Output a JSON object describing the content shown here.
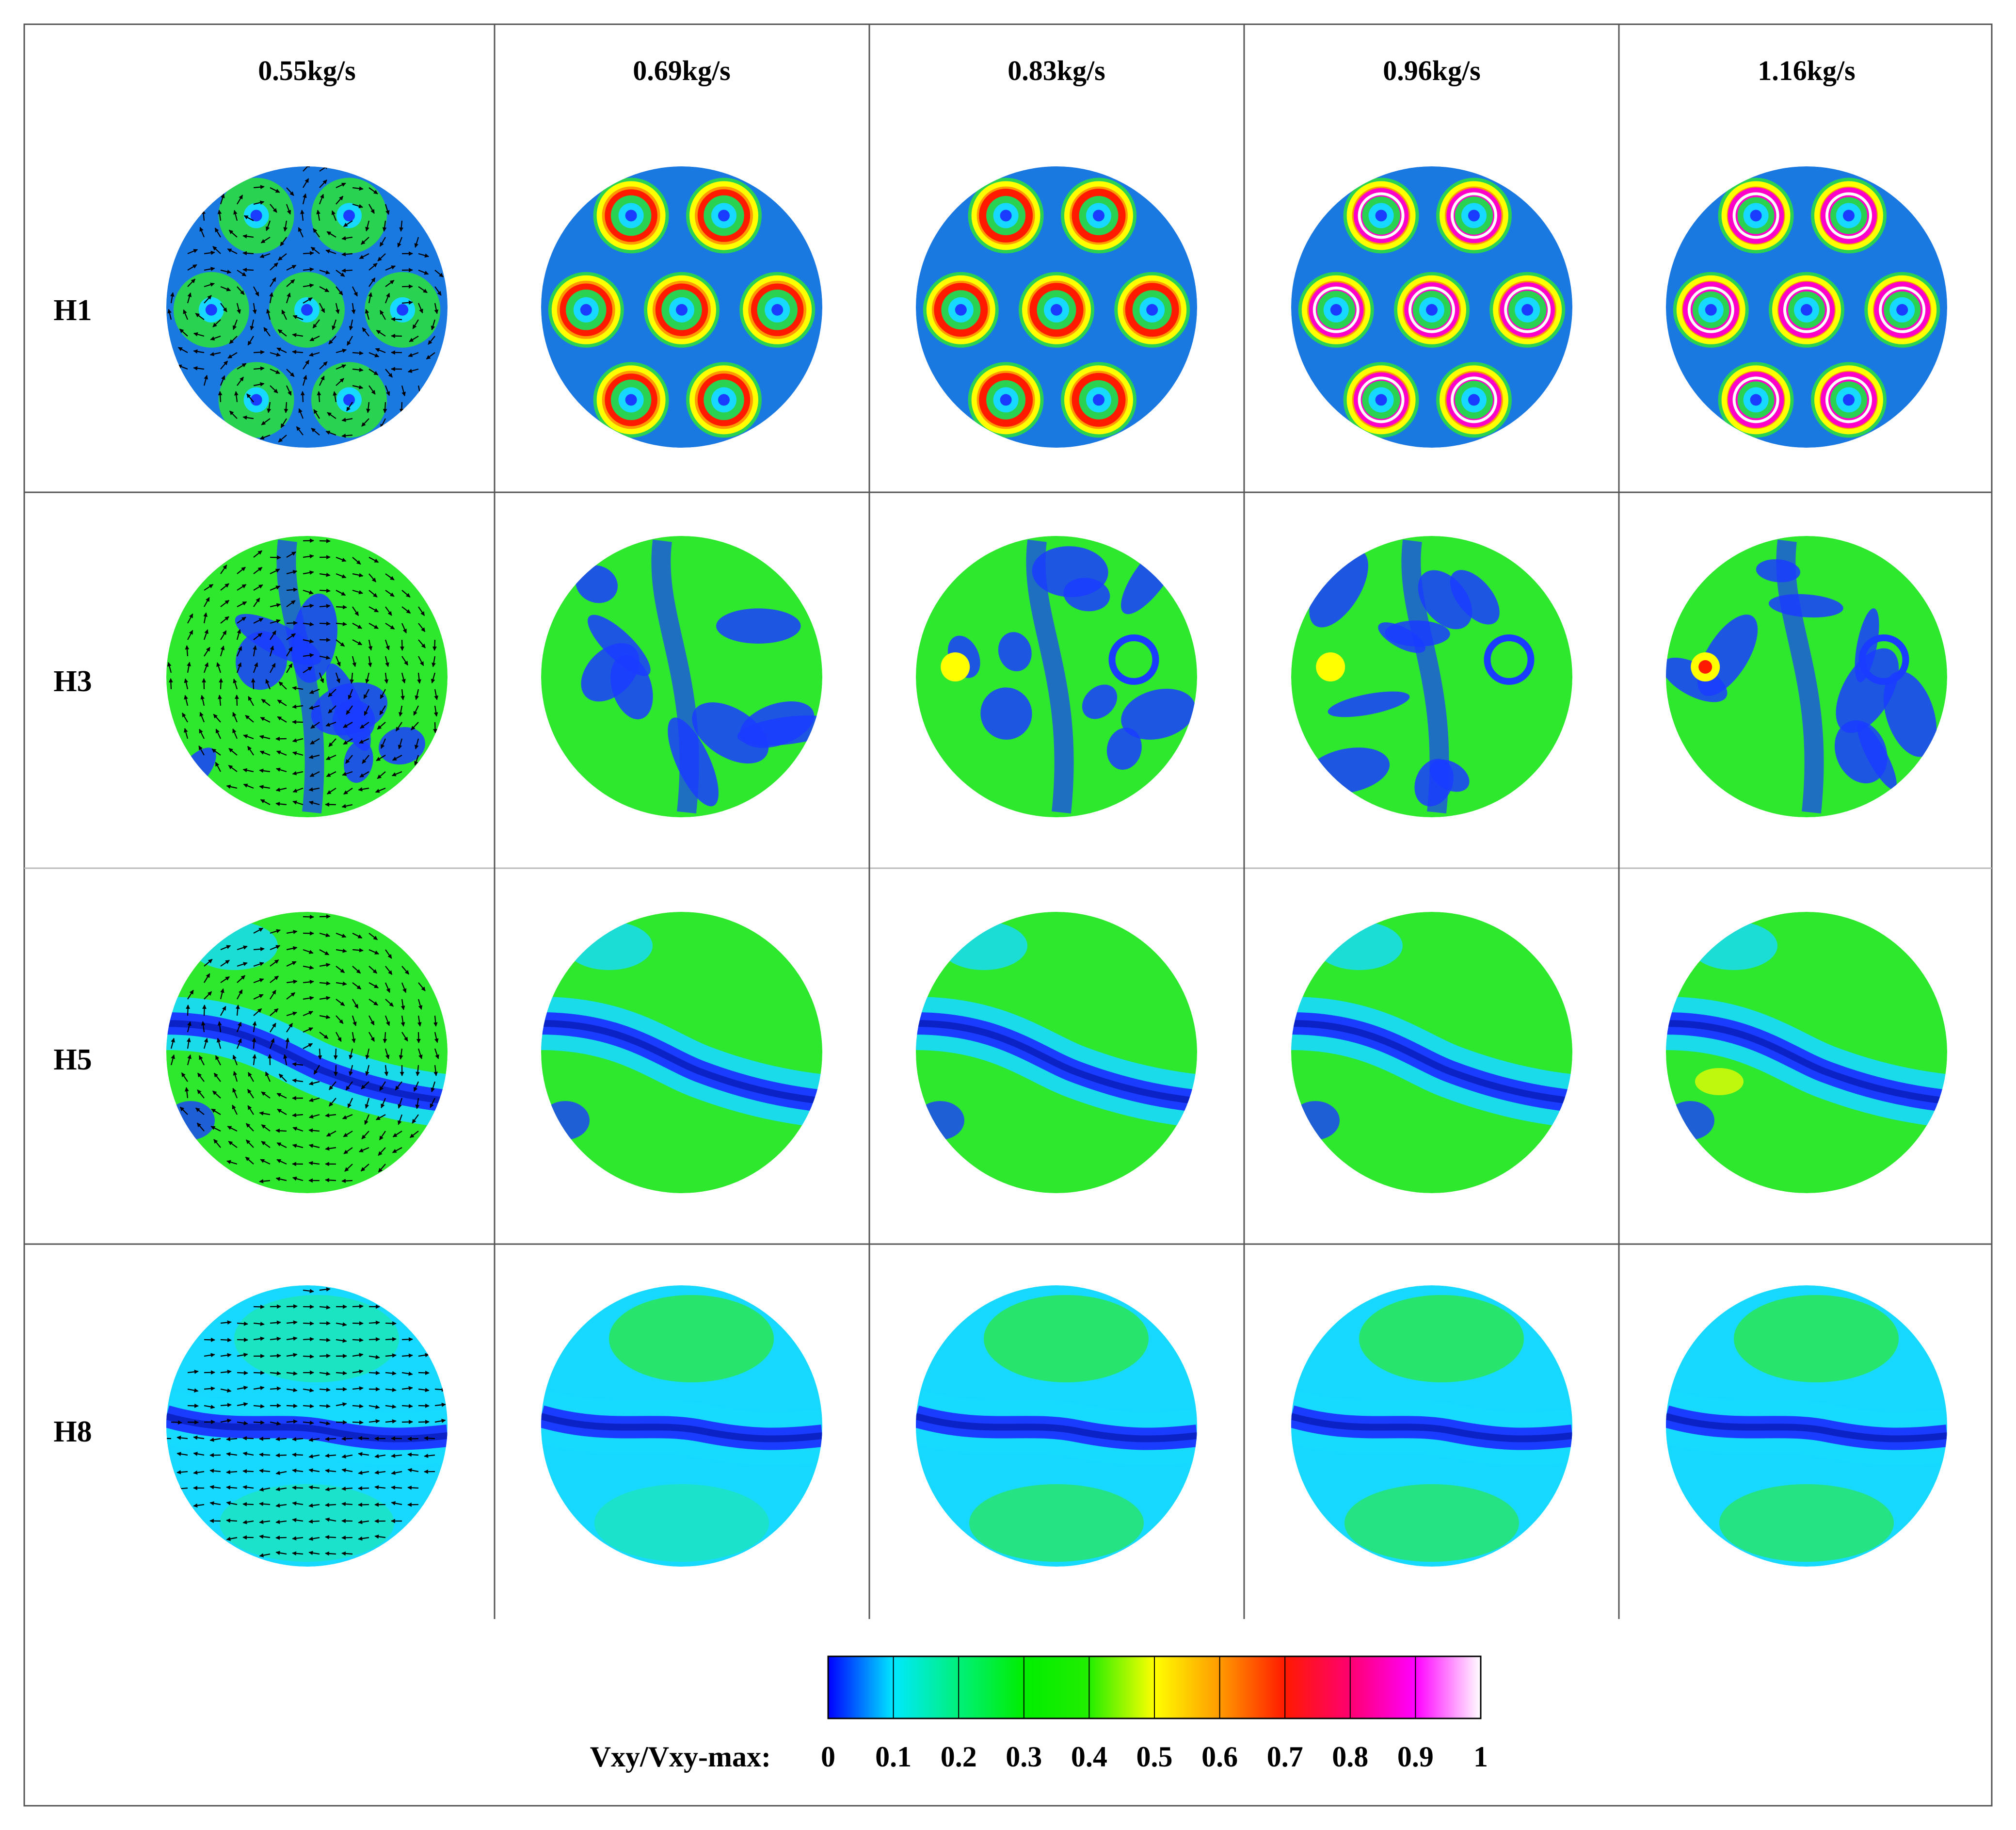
{
  "figure": {
    "columns": [
      "0.55kg/s",
      "0.69kg/s",
      "0.83kg/s",
      "0.96kg/s",
      "1.16kg/s"
    ],
    "rows": [
      "H1",
      "H3",
      "H5",
      "H8"
    ],
    "first_column_style": "velocity vectors over contour",
    "other_columns_style": "contour"
  },
  "colorbar": {
    "label": "Vxy/Vxy-max:",
    "ticks": [
      "0",
      "0.1",
      "0.2",
      "0.3",
      "0.4",
      "0.5",
      "0.6",
      "0.7",
      "0.8",
      "0.9",
      "1"
    ],
    "colors": [
      "#0000ff",
      "#00e8ff",
      "#00f07a",
      "#00ee00",
      "#22ee00",
      "#ffff00",
      "#ff9a00",
      "#ff1a00",
      "#ff0070",
      "#ff00ff",
      "#ffffff"
    ]
  },
  "palette": {
    "blue": "#1a3cff",
    "cyan": "#17d9ff",
    "teal": "#1ee8a8",
    "green": "#2ee82e",
    "yellow": "#ffff00",
    "orange": "#ff9a00",
    "red": "#ff1a00",
    "magenta": "#ff00c8",
    "white": "#ffffff",
    "arrow": "#000000",
    "frame": "#555555"
  }
}
